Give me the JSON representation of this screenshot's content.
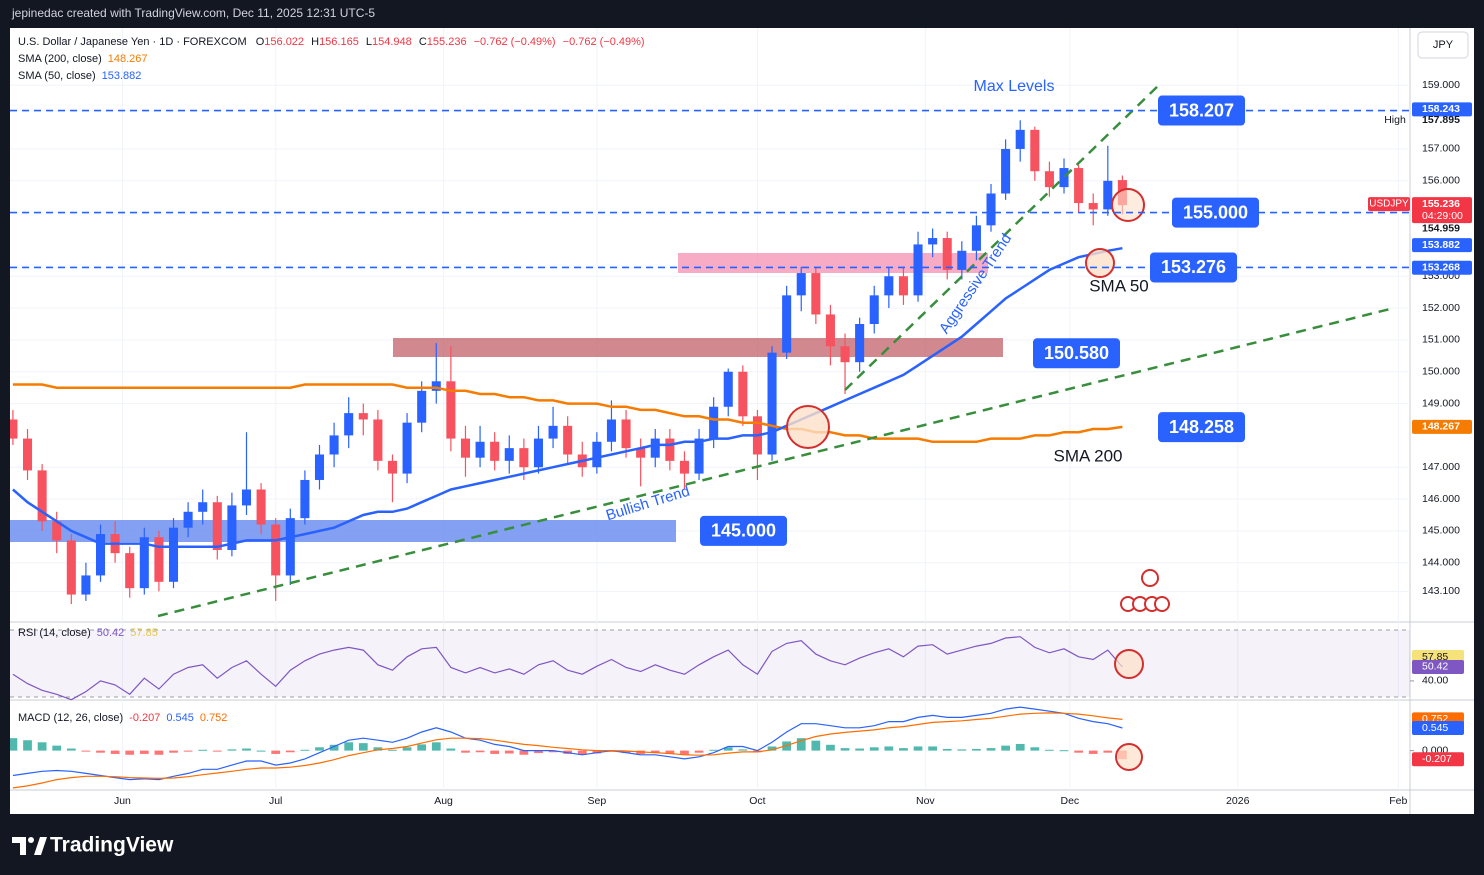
{
  "header": {
    "credit": "jepinedac created with TradingView.com, Dec 11, 2025 12:31 UTC-5"
  },
  "footer": {
    "logo": "TradingView"
  },
  "chart_data": {
    "type": "candlestick",
    "title": "U.S. Dollar / Japanese Yen · 1D · FOREXCOM",
    "legend": {
      "open_label": "O",
      "high_label": "H",
      "low_label": "L",
      "close_label": "C",
      "change": "−0.762 (−0.49%)",
      "change_2": "−0.762 (−0.49%)"
    },
    "currency": "JPY",
    "up_color": "#2962ff",
    "down_color": "#f7525f",
    "candles": [
      [
        148.5,
        148.8,
        147.7,
        147.9
      ],
      [
        147.9,
        148.2,
        146.6,
        146.9
      ],
      [
        146.9,
        147.1,
        145.0,
        145.3
      ],
      [
        145.3,
        145.6,
        144.3,
        144.7
      ],
      [
        144.7,
        144.9,
        142.7,
        143.0
      ],
      [
        143.0,
        144.0,
        142.8,
        143.6
      ],
      [
        143.6,
        145.2,
        143.4,
        144.9
      ],
      [
        144.9,
        145.3,
        144.0,
        144.3
      ],
      [
        144.3,
        144.5,
        142.9,
        143.2
      ],
      [
        143.2,
        145.1,
        143.0,
        144.8
      ],
      [
        144.8,
        145.0,
        143.1,
        143.4
      ],
      [
        143.4,
        145.4,
        143.2,
        145.1
      ],
      [
        145.1,
        145.9,
        144.8,
        145.6
      ],
      [
        145.6,
        146.3,
        145.2,
        145.9
      ],
      [
        145.9,
        146.1,
        144.1,
        144.4
      ],
      [
        144.4,
        146.2,
        144.2,
        145.8
      ],
      [
        145.8,
        148.1,
        145.5,
        146.3
      ],
      [
        146.3,
        146.5,
        144.9,
        145.2
      ],
      [
        145.2,
        145.4,
        142.8,
        143.6
      ],
      [
        143.6,
        145.7,
        143.3,
        145.4
      ],
      [
        145.4,
        146.9,
        145.2,
        146.6
      ],
      [
        146.6,
        147.7,
        146.3,
        147.4
      ],
      [
        147.4,
        148.4,
        147.0,
        148.0
      ],
      [
        148.0,
        149.2,
        147.6,
        148.7
      ],
      [
        148.7,
        149.0,
        148.0,
        148.5
      ],
      [
        148.5,
        148.8,
        146.9,
        147.2
      ],
      [
        147.2,
        147.4,
        145.9,
        146.8
      ],
      [
        146.8,
        148.7,
        146.5,
        148.4
      ],
      [
        148.4,
        149.7,
        148.1,
        149.4
      ],
      [
        149.4,
        150.9,
        149.0,
        149.7
      ],
      [
        149.7,
        150.8,
        147.5,
        147.9
      ],
      [
        147.9,
        148.3,
        146.7,
        147.3
      ],
      [
        147.3,
        148.3,
        147.0,
        147.8
      ],
      [
        147.8,
        148.1,
        146.9,
        147.2
      ],
      [
        147.2,
        148.0,
        146.8,
        147.6
      ],
      [
        147.6,
        147.9,
        146.6,
        147.0
      ],
      [
        147.0,
        148.3,
        146.8,
        147.9
      ],
      [
        147.9,
        148.9,
        147.6,
        148.3
      ],
      [
        148.3,
        148.6,
        147.1,
        147.4
      ],
      [
        147.4,
        147.8,
        146.7,
        147.0
      ],
      [
        147.0,
        148.1,
        146.8,
        147.8
      ],
      [
        147.8,
        149.1,
        147.5,
        148.5
      ],
      [
        148.5,
        148.8,
        147.3,
        147.6
      ],
      [
        147.6,
        147.9,
        146.4,
        147.3
      ],
      [
        147.3,
        148.2,
        147.0,
        147.9
      ],
      [
        147.9,
        148.2,
        146.9,
        147.2
      ],
      [
        147.2,
        147.5,
        146.3,
        146.8
      ],
      [
        146.8,
        148.2,
        146.6,
        147.9
      ],
      [
        147.9,
        149.2,
        147.6,
        148.9
      ],
      [
        148.9,
        150.1,
        148.6,
        150.0
      ],
      [
        150.0,
        150.2,
        148.3,
        148.6
      ],
      [
        148.6,
        148.8,
        146.6,
        147.4
      ],
      [
        147.4,
        150.8,
        147.2,
        150.6
      ],
      [
        150.6,
        152.7,
        150.4,
        152.4
      ],
      [
        152.4,
        153.3,
        151.9,
        153.1
      ],
      [
        153.1,
        153.3,
        151.5,
        151.8
      ],
      [
        151.8,
        152.1,
        150.2,
        150.8
      ],
      [
        150.8,
        151.2,
        149.3,
        150.3
      ],
      [
        150.3,
        151.7,
        150.0,
        151.5
      ],
      [
        151.5,
        152.7,
        151.2,
        152.4
      ],
      [
        152.4,
        153.3,
        152.0,
        153.0
      ],
      [
        153.0,
        153.3,
        152.1,
        152.4
      ],
      [
        152.4,
        154.4,
        152.2,
        154.0
      ],
      [
        154.0,
        154.5,
        153.6,
        154.2
      ],
      [
        154.2,
        154.4,
        152.9,
        153.2
      ],
      [
        153.2,
        154.1,
        152.9,
        153.8
      ],
      [
        153.8,
        154.9,
        153.5,
        154.6
      ],
      [
        154.6,
        155.9,
        154.4,
        155.6
      ],
      [
        155.6,
        157.3,
        155.4,
        157.0
      ],
      [
        157.0,
        157.9,
        156.6,
        157.6
      ],
      [
        157.6,
        157.7,
        156.0,
        156.3
      ],
      [
        156.3,
        156.6,
        155.5,
        155.8
      ],
      [
        155.8,
        156.7,
        155.6,
        156.4
      ],
      [
        156.4,
        156.5,
        155.0,
        155.3
      ],
      [
        155.3,
        155.6,
        154.6,
        155.1
      ],
      [
        155.1,
        157.1,
        154.9,
        155.998
      ],
      [
        156.022,
        156.165,
        154.948,
        155.236
      ]
    ],
    "series": [
      {
        "name": "SMA (200, close)",
        "color": "#f57c00",
        "values": [
          149.6,
          149.6,
          149.6,
          149.5,
          149.5,
          149.5,
          149.5,
          149.5,
          149.5,
          149.5,
          149.5,
          149.5,
          149.5,
          149.5,
          149.5,
          149.5,
          149.5,
          149.5,
          149.5,
          149.5,
          149.6,
          149.6,
          149.6,
          149.6,
          149.6,
          149.6,
          149.6,
          149.5,
          149.5,
          149.5,
          149.4,
          149.4,
          149.3,
          149.3,
          149.2,
          149.2,
          149.1,
          149.1,
          149.0,
          149.0,
          149.0,
          148.9,
          148.9,
          148.8,
          148.8,
          148.7,
          148.6,
          148.6,
          148.5,
          148.5,
          148.4,
          148.4,
          148.3,
          148.2,
          148.2,
          148.1,
          148.1,
          148.0,
          148.0,
          147.9,
          147.9,
          147.9,
          147.9,
          147.8,
          147.8,
          147.8,
          147.8,
          147.9,
          147.9,
          147.9,
          148.0,
          148.0,
          148.1,
          148.1,
          148.2,
          148.2,
          148.267
        ]
      },
      {
        "name": "SMA (50, close)",
        "color": "#2962ff",
        "values": [
          146.3,
          145.9,
          145.6,
          145.3,
          145.0,
          144.8,
          144.6,
          144.6,
          144.6,
          144.6,
          144.5,
          144.5,
          144.5,
          144.5,
          144.5,
          144.6,
          144.7,
          144.7,
          144.7,
          144.8,
          144.9,
          145.0,
          145.1,
          145.3,
          145.5,
          145.6,
          145.6,
          145.7,
          145.9,
          146.1,
          146.3,
          146.4,
          146.5,
          146.6,
          146.7,
          146.8,
          146.9,
          147.0,
          147.1,
          147.2,
          147.3,
          147.4,
          147.5,
          147.6,
          147.7,
          147.7,
          147.8,
          147.8,
          147.9,
          147.9,
          148.0,
          148.0,
          148.1,
          148.3,
          148.5,
          148.7,
          148.9,
          149.1,
          149.3,
          149.5,
          149.7,
          149.9,
          150.2,
          150.5,
          150.8,
          151.1,
          151.5,
          151.9,
          152.3,
          152.6,
          152.9,
          153.2,
          153.4,
          153.6,
          153.7,
          153.8,
          153.882
        ]
      }
    ],
    "xlim": [
      -0.2,
      95.7
    ],
    "xticks": [
      {
        "value": 7.5,
        "label": "Jun"
      },
      {
        "value": 18,
        "label": "Jul"
      },
      {
        "value": 29.5,
        "label": "Aug"
      },
      {
        "value": 40,
        "label": "Sep"
      },
      {
        "value": 51,
        "label": "Oct"
      },
      {
        "value": 62.5,
        "label": "Nov"
      },
      {
        "value": 72.4,
        "label": "Dec"
      },
      {
        "value": 83.9,
        "label": "2026"
      },
      {
        "value": 94.9,
        "label": "Feb"
      }
    ],
    "ylim": [
      142.2,
      160.8
    ],
    "yticks": [
      {
        "value": 143.1,
        "label": "143.100"
      },
      {
        "value": 144,
        "label": "144.000"
      },
      {
        "value": 145,
        "label": "145.000"
      },
      {
        "value": 146,
        "label": "146.000"
      },
      {
        "value": 147,
        "label": "147.000"
      },
      {
        "value": 149,
        "label": "149.000"
      },
      {
        "value": 150,
        "label": "150.000"
      },
      {
        "value": 151,
        "label": "151.000"
      },
      {
        "value": 152,
        "label": "152.000"
      },
      {
        "value": 153,
        "label": "153.000"
      },
      {
        "value": 156,
        "label": "156.000"
      },
      {
        "value": 157,
        "label": "157.000"
      },
      {
        "value": 159,
        "label": "159.000"
      }
    ],
    "grid": true,
    "price_labels": [
      158.243,
      157.895,
      154.959,
      153.268
    ],
    "high_label": "High",
    "symbol": "USDJPY",
    "countdown": "04:29:00",
    "annotations": {
      "levels": {
        "values": [
          158.207,
          155,
          153.276,
          150.58,
          148.258,
          145
        ],
        "value_labels": [
          "158.207",
          "155.000",
          "153.276",
          "150.580",
          "148.258",
          "145.000"
        ]
      },
      "texts": [
        "Max Levels",
        "SMA 50",
        "SMA 200",
        "Aggressive Trend",
        "Bullish Trend"
      ]
    },
    "rsi": {
      "name": "RSI (14, close)",
      "color": "#7e57c2",
      "values": [
        45,
        38,
        33,
        30,
        26,
        32,
        40,
        37,
        30,
        42,
        34,
        45,
        50,
        52,
        42,
        50,
        55,
        45,
        36,
        48,
        55,
        60,
        63,
        65,
        63,
        52,
        48,
        58,
        64,
        65,
        50,
        46,
        50,
        46,
        49,
        45,
        52,
        55,
        48,
        45,
        51,
        56,
        50,
        47,
        52,
        48,
        45,
        52,
        58,
        63,
        52,
        45,
        62,
        68,
        70,
        60,
        55,
        52,
        57,
        61,
        64,
        58,
        66,
        67,
        60,
        63,
        66,
        68,
        72,
        73,
        65,
        61,
        64,
        58,
        56,
        63,
        50.42
      ],
      "ylim": [
        28,
        78
      ],
      "yticks": [
        57.85,
        50.42,
        {
          "value": 40,
          "label": "40.00"
        }
      ]
    },
    "macd": {
      "name": "MACD (12, 26, close)",
      "histogram": [
        0.3,
        0.25,
        0.2,
        0.12,
        0.05,
        -0.02,
        -0.05,
        -0.08,
        -0.1,
        -0.08,
        -0.1,
        -0.05,
        -0.02,
        0.02,
        -0.01,
        0.03,
        0.05,
        0.0,
        -0.08,
        -0.04,
        0.02,
        0.08,
        0.14,
        0.2,
        0.18,
        0.08,
        0.02,
        0.08,
        0.15,
        0.2,
        0.05,
        -0.05,
        -0.04,
        -0.08,
        -0.07,
        -0.1,
        -0.06,
        -0.04,
        -0.08,
        -0.1,
        -0.07,
        -0.03,
        -0.06,
        -0.08,
        -0.06,
        -0.08,
        -0.1,
        -0.05,
        0.02,
        0.08,
        0.03,
        -0.04,
        0.1,
        0.22,
        0.3,
        0.24,
        0.14,
        0.06,
        0.05,
        0.08,
        0.1,
        0.06,
        0.1,
        0.1,
        0.04,
        0.03,
        0.04,
        0.06,
        0.12,
        0.16,
        0.08,
        0.02,
        0.01,
        -0.05,
        -0.08,
        -0.05,
        -0.207
      ],
      "macd": [
        -0.6,
        -0.55,
        -0.5,
        -0.48,
        -0.5,
        -0.55,
        -0.6,
        -0.65,
        -0.7,
        -0.68,
        -0.7,
        -0.62,
        -0.55,
        -0.45,
        -0.45,
        -0.35,
        -0.25,
        -0.25,
        -0.35,
        -0.3,
        -0.2,
        -0.05,
        0.1,
        0.25,
        0.3,
        0.25,
        0.2,
        0.3,
        0.45,
        0.55,
        0.45,
        0.3,
        0.25,
        0.15,
        0.1,
        0.0,
        0.0,
        0.0,
        -0.05,
        -0.1,
        -0.05,
        0.0,
        -0.05,
        -0.1,
        -0.1,
        -0.15,
        -0.2,
        -0.15,
        -0.05,
        0.1,
        0.1,
        0.0,
        0.2,
        0.45,
        0.65,
        0.65,
        0.6,
        0.55,
        0.55,
        0.6,
        0.7,
        0.7,
        0.8,
        0.85,
        0.8,
        0.8,
        0.85,
        0.9,
        1.0,
        1.05,
        1.0,
        0.95,
        0.9,
        0.78,
        0.7,
        0.65,
        0.545
      ],
      "signal": [
        -0.9,
        -0.85,
        -0.78,
        -0.7,
        -0.65,
        -0.62,
        -0.62,
        -0.63,
        -0.65,
        -0.66,
        -0.67,
        -0.66,
        -0.63,
        -0.58,
        -0.54,
        -0.5,
        -0.45,
        -0.42,
        -0.42,
        -0.4,
        -0.36,
        -0.3,
        -0.22,
        -0.12,
        -0.05,
        0.02,
        0.05,
        0.1,
        0.18,
        0.26,
        0.3,
        0.3,
        0.29,
        0.25,
        0.2,
        0.15,
        0.12,
        0.08,
        0.05,
        0.02,
        0.0,
        0.0,
        -0.01,
        -0.03,
        -0.05,
        -0.07,
        -0.1,
        -0.11,
        -0.1,
        -0.06,
        -0.03,
        -0.03,
        0.02,
        0.12,
        0.24,
        0.34,
        0.4,
        0.44,
        0.47,
        0.5,
        0.55,
        0.58,
        0.63,
        0.68,
        0.7,
        0.72,
        0.75,
        0.78,
        0.83,
        0.88,
        0.9,
        0.91,
        0.9,
        0.88,
        0.84,
        0.79,
        0.752
      ],
      "colors": {
        "macd": "#2962ff",
        "signal": "#ff6d00",
        "up": "#26a69a",
        "down": "#ff5252"
      },
      "ylim": [
        -0.95,
        1.1
      ],
      "yticks": [
        0.752,
        0.545,
        {
          "value": 0,
          "label": "0.000"
        },
        -0.207
      ]
    }
  }
}
